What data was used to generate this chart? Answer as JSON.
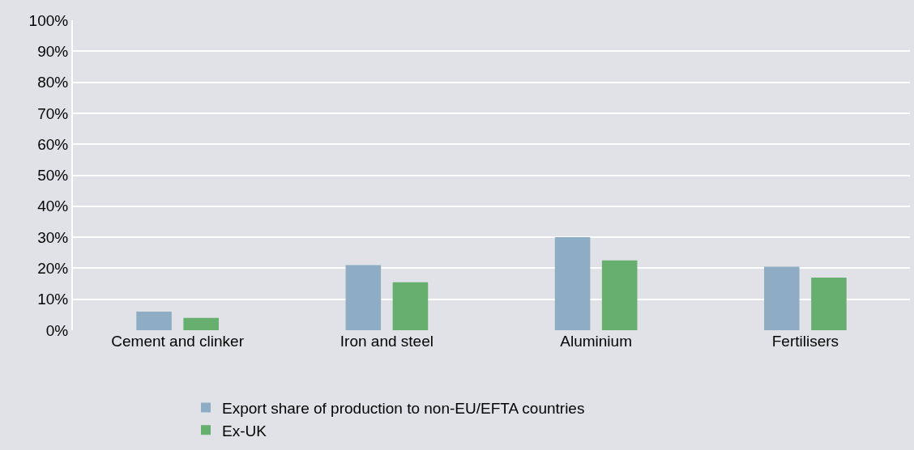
{
  "chart_data": {
    "type": "bar",
    "categories": [
      "Cement and clinker",
      "Iron and steel",
      "Aluminium",
      "Fertilisers"
    ],
    "series": [
      {
        "name": "Export share of production to non-EU/EFTA countries",
        "color": "#8eadc5",
        "values": [
          6,
          21,
          30,
          20.5
        ]
      },
      {
        "name": "Ex-UK",
        "color": "#67af6f",
        "values": [
          4,
          15.5,
          22.5,
          17
        ]
      }
    ],
    "ylim": [
      0,
      100
    ],
    "yticks": [
      {
        "value": 0,
        "label": "0%"
      },
      {
        "value": 10,
        "label": "10%"
      },
      {
        "value": 20,
        "label": "20%"
      },
      {
        "value": 30,
        "label": "30%"
      },
      {
        "value": 40,
        "label": "40%"
      },
      {
        "value": 50,
        "label": "50%"
      },
      {
        "value": 60,
        "label": "60%"
      },
      {
        "value": 70,
        "label": "70%"
      },
      {
        "value": 80,
        "label": "80%"
      },
      {
        "value": 90,
        "label": "90%"
      },
      {
        "value": 100,
        "label": "100%"
      }
    ],
    "grid": "y",
    "legend": "bottom"
  }
}
